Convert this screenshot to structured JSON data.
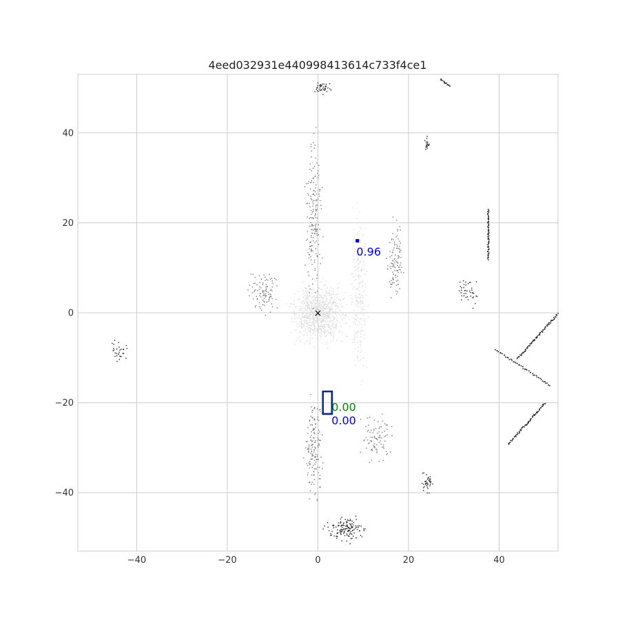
{
  "chart_data": {
    "type": "scatter",
    "title": "4eed032931e440998413614c733f4ce1",
    "xlabel": "",
    "ylabel": "",
    "xlim": [
      -53,
      53
    ],
    "ylim": [
      -53,
      53
    ],
    "x_ticks": [
      -40,
      -20,
      0,
      20,
      40
    ],
    "y_ticks": [
      40,
      20,
      0,
      -20,
      -40
    ],
    "grid": true,
    "ego_marker": {
      "x": 0,
      "y": 0,
      "symbol": "×"
    },
    "colors": {
      "near_points": "#dcdcdc",
      "mid_points": "#7a7a7a",
      "far_points": "#222222",
      "prediction": "#0000dd",
      "ground_truth": "#008800",
      "box_outline": "#0a2a8a",
      "grid": "#cccccc"
    },
    "point_clusters": [
      {
        "x": 0,
        "y": 0,
        "spread_x": 9,
        "spread_y": 10,
        "count": 900,
        "shade": "near"
      },
      {
        "x": 9,
        "y": 5,
        "spread_x": 3,
        "spread_y": 28,
        "count": 260,
        "shade": "near"
      },
      {
        "x": -1,
        "y": 22,
        "spread_x": 3,
        "spread_y": 28,
        "count": 180,
        "shade": "mid"
      },
      {
        "x": -1,
        "y": -30,
        "spread_x": 3,
        "spread_y": 16,
        "count": 160,
        "shade": "mid"
      },
      {
        "x": 6,
        "y": -48,
        "spread_x": 6,
        "spread_y": 4,
        "count": 140,
        "shade": "far"
      },
      {
        "x": 1,
        "y": 50,
        "spread_x": 3,
        "spread_y": 2,
        "count": 40,
        "shade": "far"
      },
      {
        "x": 13,
        "y": -28,
        "spread_x": 5,
        "spread_y": 8,
        "count": 90,
        "shade": "mid"
      },
      {
        "x": 17,
        "y": 12,
        "spread_x": 3,
        "spread_y": 14,
        "count": 110,
        "shade": "mid"
      },
      {
        "x": -12,
        "y": 5,
        "spread_x": 5,
        "spread_y": 8,
        "count": 100,
        "shade": "mid"
      },
      {
        "x": 24,
        "y": -38,
        "spread_x": 2,
        "spread_y": 4,
        "count": 40,
        "shade": "far"
      },
      {
        "x": -44,
        "y": -8,
        "spread_x": 3,
        "spread_y": 4,
        "count": 30,
        "shade": "far"
      },
      {
        "x": 33,
        "y": 5,
        "spread_x": 4,
        "spread_y": 6,
        "count": 40,
        "shade": "far"
      },
      {
        "x": 24,
        "y": 38,
        "spread_x": 1,
        "spread_y": 3,
        "count": 20,
        "shade": "far"
      }
    ],
    "point_lines": [
      {
        "x0": 37.5,
        "y0": 23,
        "x1": 37.5,
        "y1": 12,
        "count": 60
      },
      {
        "x0": 44,
        "y0": -10,
        "x1": 53,
        "y1": 0,
        "count": 70
      },
      {
        "x0": 42,
        "y0": -29,
        "x1": 50,
        "y1": -20,
        "count": 60
      },
      {
        "x0": 39,
        "y0": -8,
        "x1": 51,
        "y1": -16,
        "count": 45
      },
      {
        "x0": 27,
        "y0": 52,
        "x1": 29,
        "y1": 50.5,
        "count": 15
      }
    ],
    "boxes": [
      {
        "label": "0.00",
        "kind": "ground_truth",
        "cx": 2.1,
        "cy": -20,
        "w": 2,
        "h": 5,
        "label_x": 3,
        "label_y": -21.8
      },
      {
        "label": "0.00",
        "kind": "prediction",
        "cx": 2.1,
        "cy": -20,
        "w": 2,
        "h": 5,
        "label_x": 3,
        "label_y": -24.8
      }
    ],
    "detections": [
      {
        "label": "0.96",
        "kind": "prediction",
        "x": 8.7,
        "y": 16,
        "label_x": 8.5,
        "label_y": 12.7
      }
    ]
  }
}
